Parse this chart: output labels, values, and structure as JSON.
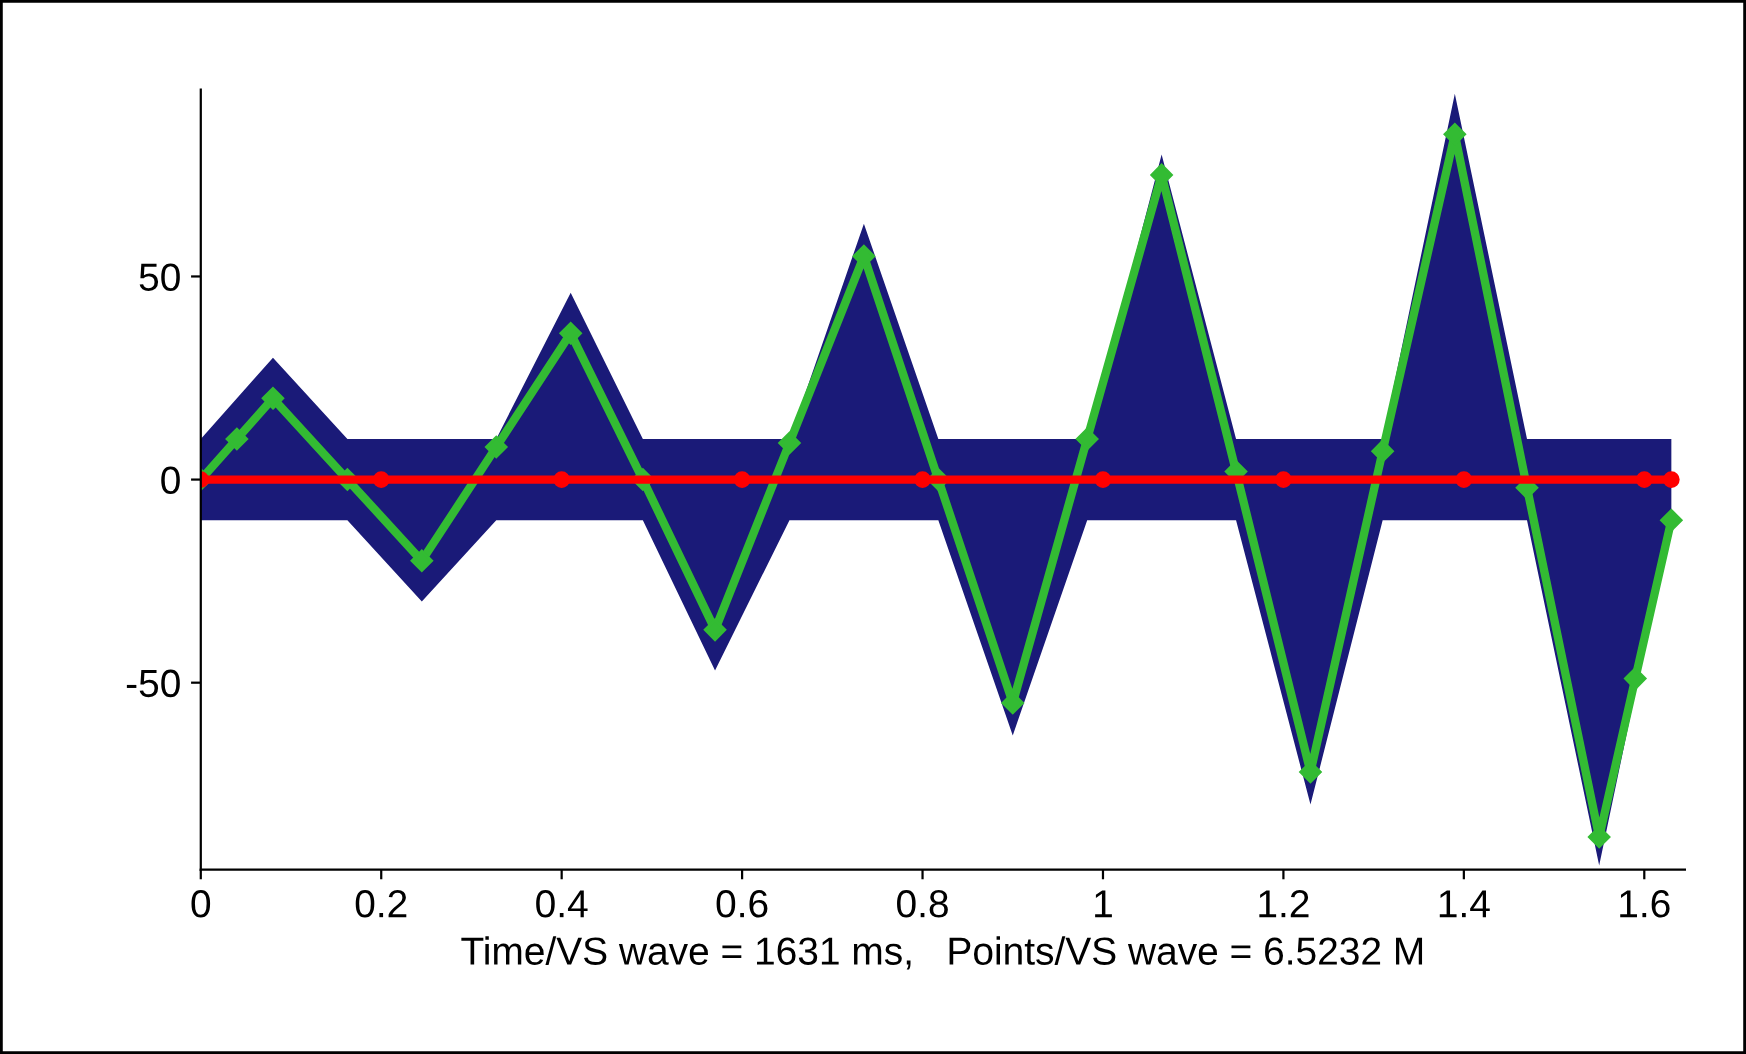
{
  "chart_data": {
    "type": "line",
    "xlabel": "Time/VS wave = 1631 ms,   Points/VS wave = 6.5232 M",
    "xlim": [
      0,
      1.645
    ],
    "ylim": [
      -96,
      96
    ],
    "xticks": [
      0,
      0.2,
      0.4,
      0.6,
      0.8,
      1,
      1.2,
      1.4,
      1.6
    ],
    "yticks": [
      -50,
      0,
      50
    ],
    "grid": false,
    "legend": false,
    "series": [
      {
        "type": "area",
        "color": "#1a1a78",
        "x": [
          0,
          0.08,
          0.1625,
          0.245,
          0.3275,
          0.41,
          0.49,
          0.57,
          0.6525,
          0.735,
          0.8175,
          0.9,
          0.9825,
          1.065,
          1.1475,
          1.23,
          1.31,
          1.39,
          1.47,
          1.55,
          1.63
        ],
        "values": [
          10,
          30,
          10,
          10,
          10,
          46,
          10,
          10,
          10,
          63,
          10,
          10,
          10,
          80,
          10,
          10,
          10,
          95,
          10,
          10,
          10
        ]
      },
      {
        "type": "area",
        "color": "#1a1a78",
        "x": [
          0,
          0.08,
          0.1625,
          0.245,
          0.3275,
          0.41,
          0.49,
          0.57,
          0.6525,
          0.735,
          0.8175,
          0.9,
          0.9825,
          1.065,
          1.1475,
          1.23,
          1.31,
          1.39,
          1.47,
          1.55,
          1.63
        ],
        "values": [
          -10,
          -10,
          -10,
          -30,
          -10,
          -10,
          -10,
          -47,
          -10,
          -10,
          -10,
          -63,
          -10,
          -10,
          -10,
          -80,
          -10,
          -10,
          -10,
          -95,
          -10
        ]
      },
      {
        "color": "#33bb33",
        "marker": "diamond",
        "x": [
          0,
          0.04,
          0.08,
          0.1625,
          0.245,
          0.3275,
          0.41,
          0.49,
          0.57,
          0.6525,
          0.735,
          0.8175,
          0.9,
          0.9825,
          1.065,
          1.1475,
          1.23,
          1.31,
          1.39,
          1.47,
          1.55,
          1.59,
          1.63
        ],
        "values": [
          0,
          10,
          20,
          0,
          -20,
          8,
          36,
          0,
          -37,
          9,
          55,
          0,
          -55,
          10,
          75,
          2,
          -72,
          7,
          85,
          -2,
          -88,
          -49,
          -10
        ]
      },
      {
        "color": "#ff0000",
        "marker": "circle",
        "x": [
          0,
          0.2,
          0.4,
          0.6,
          0.8,
          1,
          1.2,
          1.4,
          1.6,
          1.63
        ],
        "values": [
          0,
          0,
          0,
          0,
          0,
          0,
          0,
          0,
          0,
          0
        ]
      }
    ]
  }
}
